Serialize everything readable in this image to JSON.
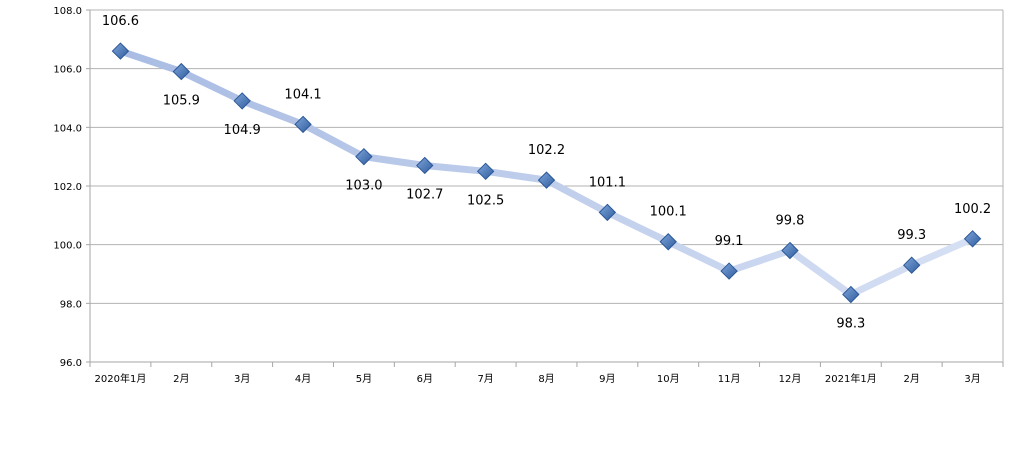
{
  "chart_data": {
    "type": "line",
    "title": "",
    "xlabel": "",
    "ylabel": "",
    "categories": [
      "2020年1月",
      "2月",
      "3月",
      "4月",
      "5月",
      "6月",
      "7月",
      "8月",
      "9月",
      "10月",
      "11月",
      "12月",
      "2021年1月",
      "2月",
      "3月"
    ],
    "series": [
      {
        "values": [
          106.6,
          105.9,
          104.9,
          104.1,
          103.0,
          102.7,
          102.5,
          102.2,
          101.1,
          100.1,
          99.1,
          99.8,
          98.3,
          99.3,
          100.2
        ],
        "line_color_start": "#A9BCE3",
        "line_color_end": "#D6E0F4",
        "marker_color": "#4A7EBB",
        "marker_shape": "diamond"
      }
    ],
    "data_labels": [
      "106.6",
      "105.9",
      "104.9",
      "104.1",
      "103.0",
      "102.7",
      "102.5",
      "102.2",
      "101.1",
      "100.1",
      "99.1",
      "99.8",
      "98.3",
      "99.3",
      "100.2"
    ],
    "label_position": [
      "above",
      "below",
      "below",
      "above",
      "below",
      "below",
      "below",
      "above",
      "above",
      "above",
      "above",
      "above",
      "below",
      "above",
      "above"
    ],
    "ylim": [
      96.0,
      108.0
    ],
    "yticks": [
      "96.0",
      "98.0",
      "100.0",
      "102.0",
      "104.0",
      "106.0",
      "108.0"
    ],
    "grid": true,
    "legend": "none",
    "grid_color": "#B3B3B3",
    "axis_color": "#A6A6A6"
  }
}
